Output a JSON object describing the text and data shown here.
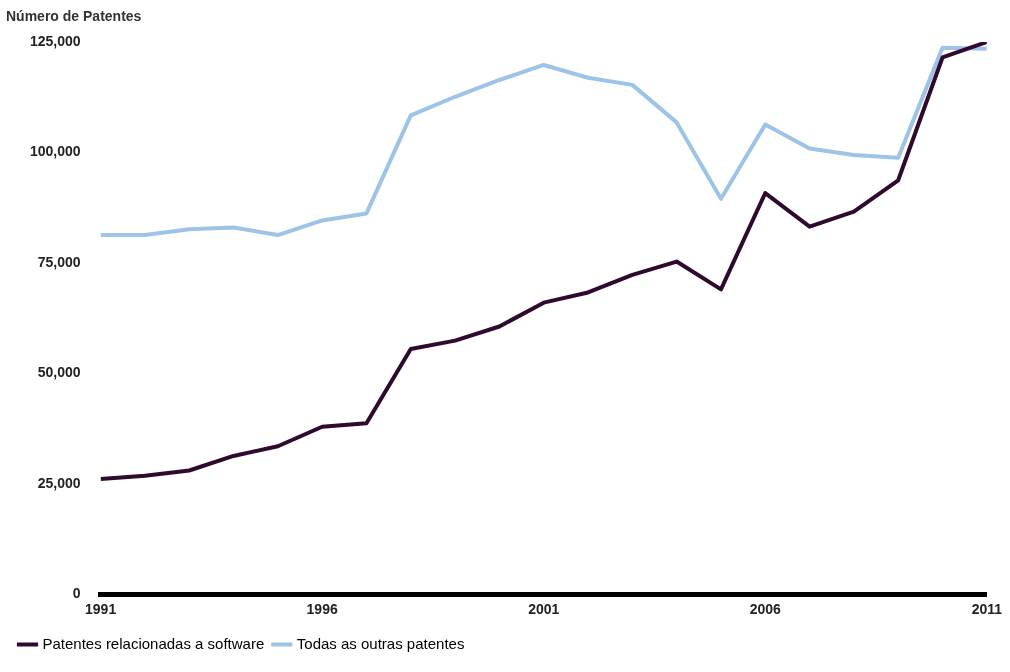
{
  "chart_data": {
    "type": "line",
    "ylabel": "Número de Patentes",
    "x": [
      1991,
      1992,
      1993,
      1994,
      1995,
      1996,
      1997,
      1998,
      1999,
      2000,
      2001,
      2002,
      2003,
      2004,
      2005,
      2006,
      2007,
      2008,
      2009,
      2010,
      2011
    ],
    "series": [
      {
        "name": "Patentes relacionadas a software",
        "color": "#2d0a2e",
        "values": [
          26100,
          26800,
          28000,
          31300,
          33500,
          37900,
          38700,
          55500,
          57400,
          60600,
          66000,
          68300,
          72300,
          75300,
          69000,
          90800,
          83200,
          86600,
          93700,
          121500,
          125000
        ]
      },
      {
        "name": "Todas as outras patentes",
        "color": "#9dc3e6",
        "values": [
          81300,
          81300,
          82600,
          83000,
          81300,
          84600,
          86200,
          108400,
          112600,
          116400,
          119800,
          116900,
          115300,
          106800,
          89500,
          106300,
          100900,
          99400,
          98800,
          123700,
          123500
        ]
      }
    ],
    "xlim": [
      1991,
      2011
    ],
    "xticks": [
      1991,
      1996,
      2001,
      2006,
      2011
    ],
    "ylim": [
      0,
      125000
    ],
    "yticks": [
      0,
      {
        "value": 25000,
        "label": "25,000"
      },
      {
        "value": 50000,
        "label": "50,000"
      },
      {
        "value": 75000,
        "label": "75,000"
      },
      {
        "value": 100000,
        "label": "100,000"
      },
      {
        "value": 125000,
        "label": "125,000"
      }
    ],
    "grid": false,
    "legend": "bottom left",
    "marker": "none",
    "line_style": "solid"
  }
}
